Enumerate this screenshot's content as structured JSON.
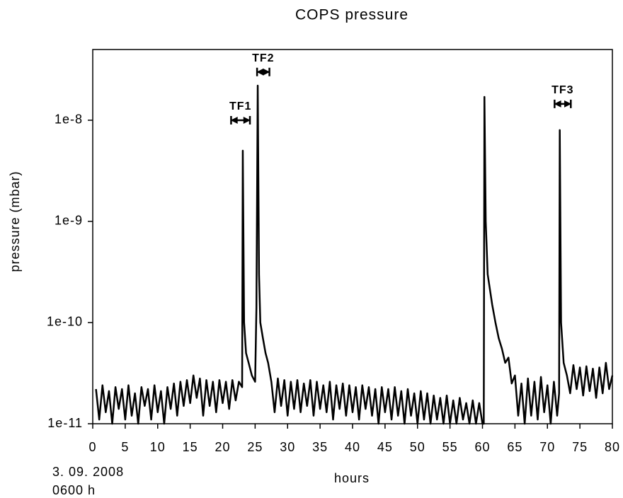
{
  "chart_data": {
    "type": "line",
    "title": "COPS pressure",
    "x_label": "hours",
    "y_label": "pressure (mbar)",
    "date_note": [
      "3. 09. 2008",
      "0600 h"
    ],
    "log_y": true,
    "xlim": [
      0,
      80
    ],
    "xticks": [
      0,
      5,
      10,
      15,
      20,
      25,
      30,
      35,
      40,
      45,
      50,
      55,
      60,
      65,
      70,
      75,
      80
    ],
    "ylim": [
      1e-11,
      5e-08
    ],
    "yticks": [
      {
        "value": 1e-11,
        "label": "1e-11"
      },
      {
        "value": 1e-10,
        "label": "1e-10"
      },
      {
        "value": 1e-09,
        "label": "1e-9"
      },
      {
        "value": 1e-08,
        "label": "1e-8"
      }
    ],
    "annotations": [
      {
        "text": "TF1",
        "x": [
          21.3,
          24.2
        ],
        "y": 1e-08
      },
      {
        "text": "TF2",
        "x": [
          25.3,
          27.2
        ],
        "y": 3e-08
      },
      {
        "text": "TF3",
        "x": [
          71.1,
          73.6
        ],
        "y": 1.45e-08
      }
    ],
    "x": [
      0.5,
      1,
      1.5,
      2,
      2.5,
      3,
      3.5,
      4,
      4.5,
      5,
      5.5,
      6,
      6.5,
      7,
      7.5,
      8,
      8.5,
      9,
      9.5,
      10,
      10.5,
      11,
      11.5,
      12,
      12.5,
      13,
      13.5,
      14,
      14.5,
      15,
      15.5,
      16,
      16.5,
      17,
      17.5,
      18,
      18.5,
      19,
      19.5,
      20,
      20.5,
      21,
      21.5,
      22,
      22.5,
      23,
      23.1,
      23.3,
      23.6,
      24,
      24.5,
      25,
      25.2,
      25.4,
      25.6,
      25.8,
      26.2,
      26.6,
      27,
      27.5,
      28,
      28.5,
      29,
      29.5,
      30,
      30.5,
      31,
      31.5,
      32,
      32.5,
      33,
      33.5,
      34,
      34.5,
      35,
      35.5,
      36,
      36.5,
      37,
      37.5,
      38,
      38.5,
      39,
      39.5,
      40,
      40.5,
      41,
      41.5,
      42,
      42.5,
      43,
      43.5,
      44,
      44.5,
      45,
      45.5,
      46,
      46.5,
      47,
      47.5,
      48,
      48.5,
      49,
      49.5,
      50,
      50.5,
      51,
      51.5,
      52,
      52.5,
      53,
      53.5,
      54,
      54.5,
      55,
      55.5,
      56,
      56.5,
      57,
      57.5,
      58,
      58.5,
      59,
      59.5,
      60,
      60.2,
      60.3,
      60.5,
      60.8,
      61.5,
      62,
      62.5,
      63,
      63.5,
      64,
      64.5,
      65,
      65.5,
      66,
      66.5,
      67,
      67.5,
      68,
      68.5,
      69,
      69.5,
      70,
      70.5,
      71,
      71.5,
      71.8,
      71.9,
      72.1,
      72.5,
      73,
      73.5,
      74,
      74.5,
      75,
      75.5,
      76,
      76.5,
      77,
      77.5,
      78,
      78.5,
      79,
      79.5,
      80
    ],
    "series": [
      {
        "name": "pressure",
        "color": "#000000",
        "values": [
          2.2e-11,
          1.1e-11,
          2.4e-11,
          1.3e-11,
          2.1e-11,
          1e-11,
          2.3e-11,
          1.4e-11,
          2.2e-11,
          1.1e-11,
          2.4e-11,
          1.2e-11,
          2e-11,
          1e-11,
          2.3e-11,
          1.5e-11,
          2.2e-11,
          1.1e-11,
          2.4e-11,
          1.3e-11,
          2.1e-11,
          1e-11,
          2.3e-11,
          1.4e-11,
          2.5e-11,
          1.2e-11,
          2.6e-11,
          1.5e-11,
          2.7e-11,
          1.6e-11,
          3e-11,
          1.8e-11,
          2.8e-11,
          1.2e-11,
          2.7e-11,
          1.5e-11,
          2.6e-11,
          1.3e-11,
          2.7e-11,
          1.6e-11,
          2.6e-11,
          1.4e-11,
          2.7e-11,
          1.7e-11,
          2.6e-11,
          2.3e-11,
          5e-09,
          1e-10,
          5e-11,
          4e-11,
          3e-11,
          2.6e-11,
          1.4e-10,
          2.2e-08,
          3e-10,
          1e-10,
          7e-11,
          5e-11,
          4e-11,
          2.6e-11,
          1.3e-11,
          2.8e-11,
          1.5e-11,
          2.7e-11,
          1.2e-11,
          2.6e-11,
          1.4e-11,
          2.7e-11,
          1.3e-11,
          2.5e-11,
          1.5e-11,
          2.7e-11,
          1.2e-11,
          2.6e-11,
          1.4e-11,
          2.4e-11,
          1.3e-11,
          2.6e-11,
          1.1e-11,
          2.4e-11,
          1.4e-11,
          2.5e-11,
          1.2e-11,
          2.4e-11,
          1.3e-11,
          2.3e-11,
          1.1e-11,
          2.4e-11,
          1.4e-11,
          2.3e-11,
          1.2e-11,
          2.2e-11,
          1e-11,
          2.3e-11,
          1.3e-11,
          2.2e-11,
          1.1e-11,
          2.3e-11,
          1.2e-11,
          2.1e-11,
          1e-11,
          2.2e-11,
          1.2e-11,
          2e-11,
          1e-11,
          2.1e-11,
          1.1e-11,
          2e-11,
          1e-11,
          1.9e-11,
          1.1e-11,
          1.8e-11,
          1e-11,
          1.9e-11,
          1e-11,
          1.7e-11,
          1e-11,
          1.8e-11,
          1.1e-11,
          1.6e-11,
          1e-11,
          1.7e-11,
          1e-11,
          1.6e-11,
          1e-11,
          1e-11,
          1.7e-08,
          1e-09,
          3e-10,
          1.5e-10,
          1e-10,
          7e-11,
          5.5e-11,
          4e-11,
          4.5e-11,
          2.5e-11,
          3e-11,
          1.2e-11,
          2.5e-11,
          1e-11,
          2.8e-11,
          1.2e-11,
          2.6e-11,
          1.1e-11,
          2.9e-11,
          1.3e-11,
          2.4e-11,
          1e-11,
          2.6e-11,
          1.2e-11,
          2e-11,
          8e-09,
          1e-10,
          4e-11,
          3e-11,
          2e-11,
          3.8e-11,
          2.2e-11,
          3.6e-11,
          1.9e-11,
          3.7e-11,
          2.1e-11,
          3.5e-11,
          1.8e-11,
          3.6e-11,
          2e-11,
          4e-11,
          2.2e-11,
          3e-11
        ]
      }
    ]
  }
}
